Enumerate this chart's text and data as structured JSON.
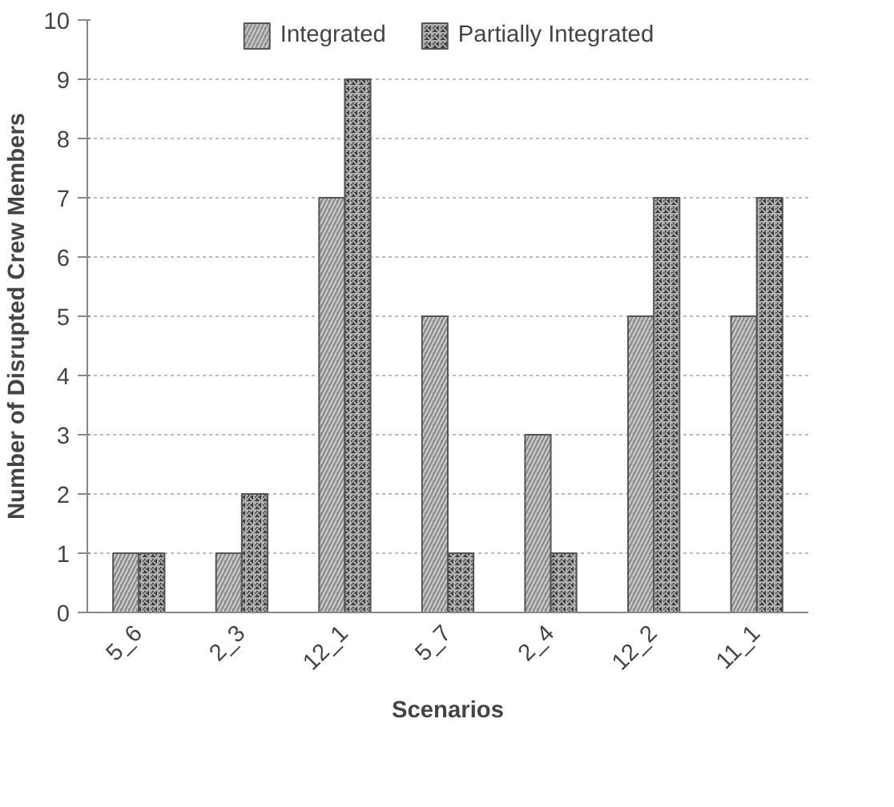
{
  "chart_data": {
    "type": "bar",
    "xlabel": "Scenarios",
    "ylabel": "Number of Disrupted Crew Members",
    "categories": [
      "5_6",
      "2_3",
      "12_1",
      "5_7",
      "2_4",
      "12_2",
      "11_1"
    ],
    "series": [
      {
        "name": "Integrated",
        "color": "#8c8c8c",
        "values": [
          1,
          1,
          7,
          5,
          3,
          5,
          5
        ]
      },
      {
        "name": "Partially Integrated",
        "color": "#3a3a3a",
        "values": [
          1,
          2,
          9,
          1,
          1,
          7,
          7
        ]
      }
    ],
    "ylim": [
      0,
      10
    ],
    "yticks": [
      0,
      1,
      2,
      3,
      4,
      5,
      6,
      7,
      8,
      9,
      10
    ],
    "grid": "y",
    "legend": "top"
  }
}
